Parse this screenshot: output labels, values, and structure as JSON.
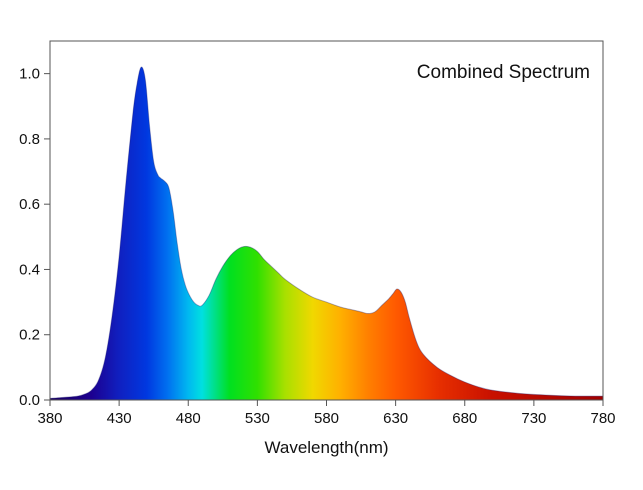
{
  "chart_data": {
    "type": "area",
    "title": "Combined Spectrum",
    "xlabel": "Wavelength(nm)",
    "ylabel": "",
    "xlim": [
      380,
      780
    ],
    "ylim": [
      0,
      1.1
    ],
    "x_ticks": [
      "380",
      "430",
      "480",
      "530",
      "580",
      "630",
      "680",
      "730",
      "780"
    ],
    "y_ticks": [
      "0.0",
      "0.2",
      "0.4",
      "0.6",
      "0.8",
      "1.0"
    ],
    "x_tick_values": [
      380,
      430,
      480,
      530,
      580,
      630,
      680,
      730,
      780
    ],
    "y_tick_values": [
      0,
      0.2,
      0.4,
      0.6,
      0.8,
      1.0
    ],
    "grid": false,
    "legend": "none",
    "fill": "wavelength spectrum gradient",
    "series": [
      {
        "x": [
          380,
          390,
          400,
          405,
          410,
          415,
          420,
          425,
          430,
          435,
          440,
          443,
          446,
          449,
          452,
          455,
          458,
          460,
          463,
          466,
          469,
          472,
          475,
          478,
          481,
          484,
          487,
          490,
          495,
          500,
          505,
          510,
          515,
          520,
          525,
          530,
          535,
          540,
          545,
          550,
          560,
          570,
          580,
          590,
          600,
          605,
          610,
          615,
          620,
          625,
          628,
          631,
          634,
          637,
          640,
          645,
          650,
          660,
          670,
          680,
          690,
          700,
          720,
          740,
          760,
          780
        ],
        "y": [
          0.005,
          0.008,
          0.012,
          0.018,
          0.03,
          0.06,
          0.13,
          0.26,
          0.44,
          0.67,
          0.88,
          0.97,
          1.02,
          0.98,
          0.84,
          0.73,
          0.69,
          0.68,
          0.67,
          0.65,
          0.58,
          0.48,
          0.4,
          0.35,
          0.32,
          0.3,
          0.29,
          0.29,
          0.32,
          0.37,
          0.41,
          0.44,
          0.46,
          0.47,
          0.468,
          0.455,
          0.43,
          0.41,
          0.39,
          0.37,
          0.34,
          0.315,
          0.3,
          0.285,
          0.275,
          0.27,
          0.265,
          0.27,
          0.29,
          0.31,
          0.325,
          0.34,
          0.33,
          0.3,
          0.25,
          0.18,
          0.14,
          0.1,
          0.075,
          0.055,
          0.04,
          0.03,
          0.02,
          0.015,
          0.012,
          0.012
        ]
      }
    ]
  },
  "colors": {
    "axis": "#555555",
    "outline": "#1a1a6e",
    "gradient_stops": [
      {
        "nm": 380,
        "color": "#1a0060"
      },
      {
        "nm": 410,
        "color": "#1c0090"
      },
      {
        "nm": 430,
        "color": "#1020c0"
      },
      {
        "nm": 450,
        "color": "#0038e0"
      },
      {
        "nm": 465,
        "color": "#0070f0"
      },
      {
        "nm": 480,
        "color": "#00b8f0"
      },
      {
        "nm": 490,
        "color": "#00e0e0"
      },
      {
        "nm": 500,
        "color": "#00e080"
      },
      {
        "nm": 510,
        "color": "#00e020"
      },
      {
        "nm": 530,
        "color": "#30e000"
      },
      {
        "nm": 550,
        "color": "#a8e000"
      },
      {
        "nm": 570,
        "color": "#f0d800"
      },
      {
        "nm": 590,
        "color": "#ffb000"
      },
      {
        "nm": 610,
        "color": "#ff8000"
      },
      {
        "nm": 630,
        "color": "#ff5a00"
      },
      {
        "nm": 660,
        "color": "#e83000"
      },
      {
        "nm": 700,
        "color": "#c81000"
      },
      {
        "nm": 780,
        "color": "#a00000"
      }
    ]
  }
}
